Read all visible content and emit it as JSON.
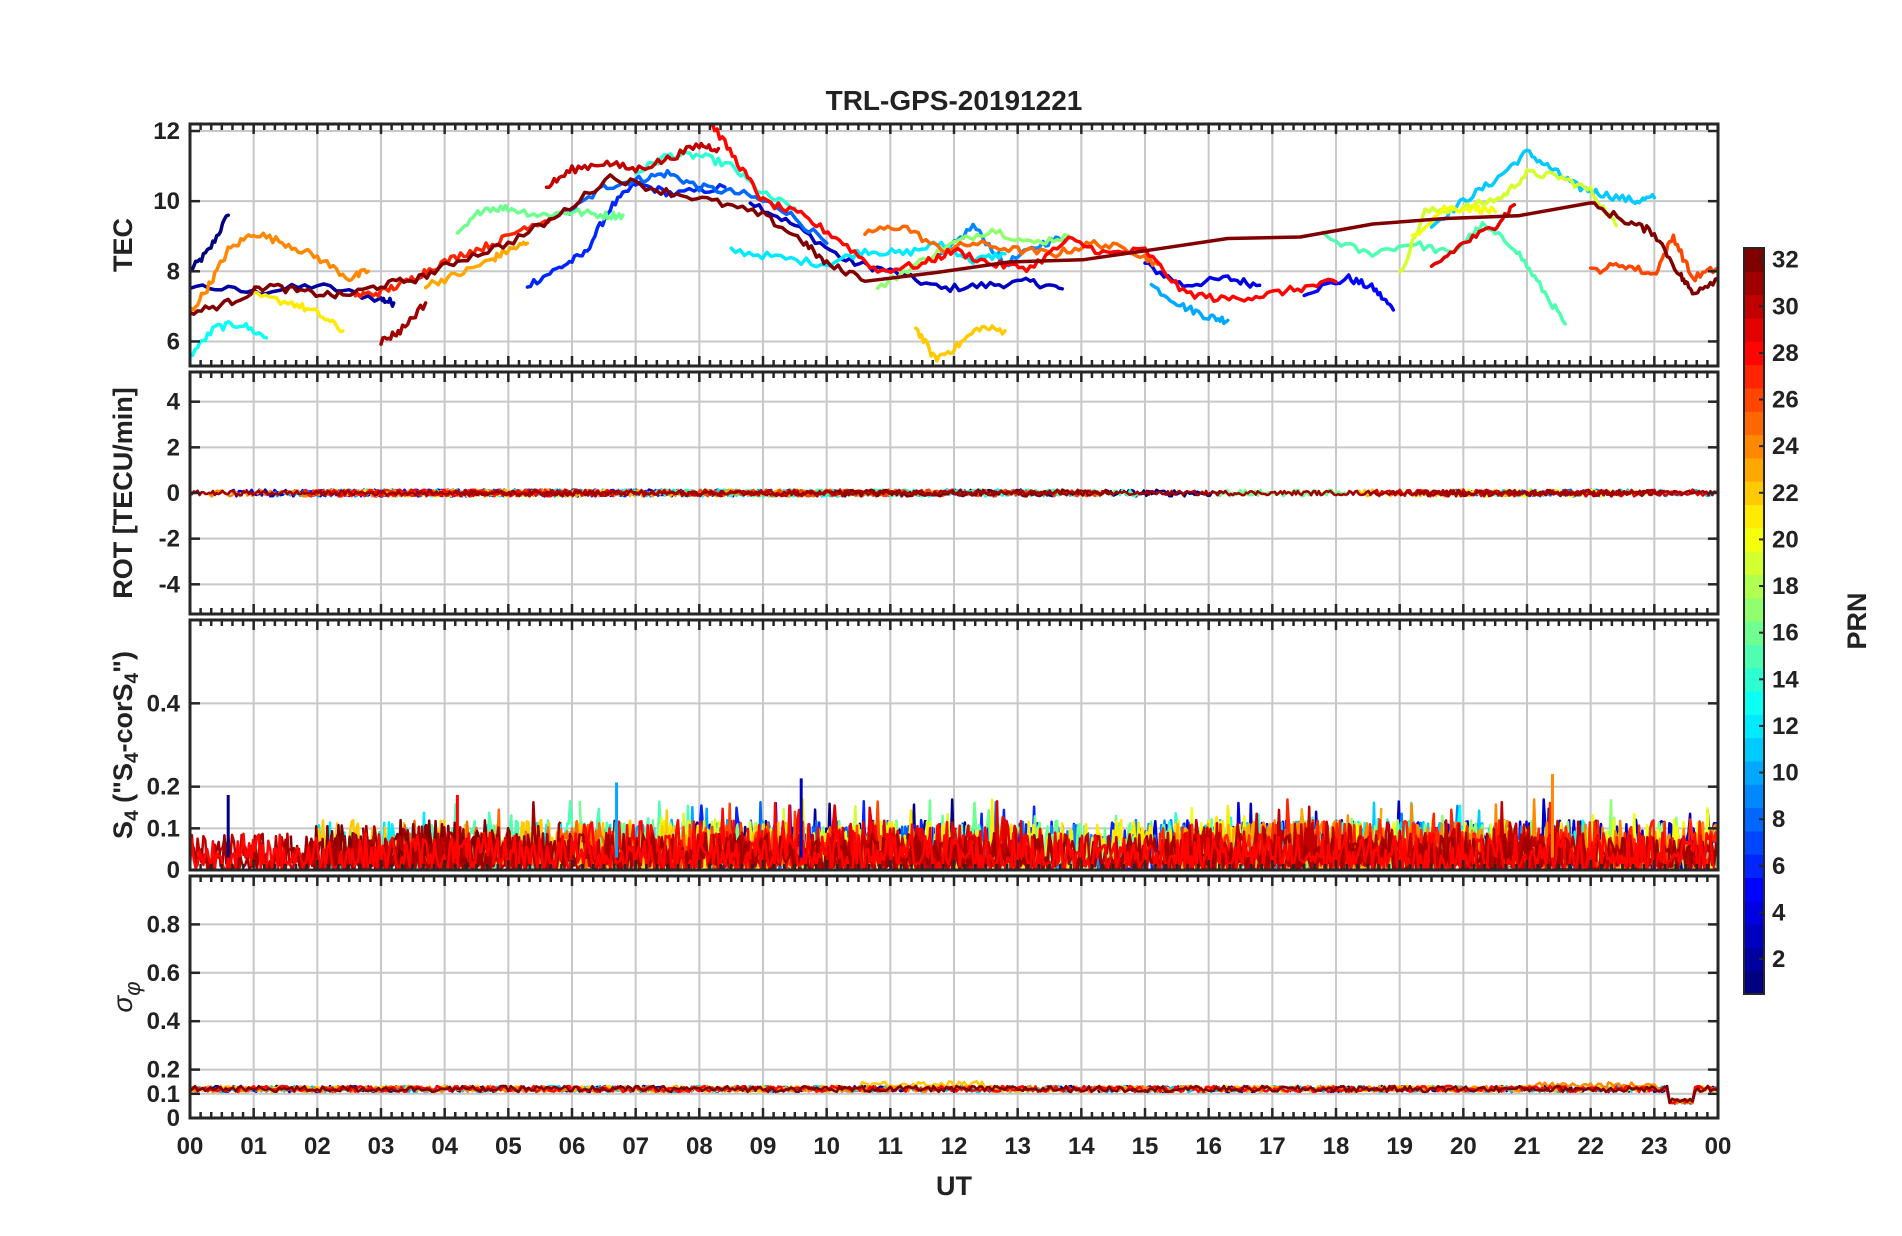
{
  "chart_data": {
    "type": "line",
    "title": "TRL-GPS-20191221",
    "xlabel": "UT",
    "x_tick_labels": [
      "00",
      "01",
      "02",
      "03",
      "04",
      "05",
      "06",
      "07",
      "08",
      "09",
      "10",
      "11",
      "12",
      "13",
      "14",
      "15",
      "16",
      "17",
      "18",
      "19",
      "20",
      "21",
      "22",
      "23",
      "00"
    ],
    "xlim": [
      0,
      24
    ],
    "colorbar": {
      "label": "PRN",
      "range": [
        1,
        32
      ],
      "tick_labels": [
        "2",
        "4",
        "6",
        "8",
        "10",
        "12",
        "14",
        "16",
        "18",
        "20",
        "22",
        "24",
        "26",
        "28",
        "30",
        "32"
      ],
      "colormap": "jet"
    },
    "panels": [
      {
        "id": "tec",
        "ylabel": "TEC",
        "ylim": [
          5.3,
          12.2
        ],
        "yticks": [
          6,
          8,
          10,
          12
        ],
        "ytick_labels": [
          "6",
          "8",
          "10",
          "12"
        ],
        "series": [
          {
            "prn": 1,
            "x": [
              0.0,
              0.3,
              0.6
            ],
            "y": [
              8.0,
              8.6,
              9.6
            ]
          },
          {
            "prn": 2,
            "x": [
              0.0,
              1.0,
              2.0,
              3.0,
              3.2
            ],
            "y": [
              7.6,
              7.4,
              7.6,
              7.2,
              7.1
            ]
          },
          {
            "prn": 3,
            "x": [
              8.8,
              9.5,
              10.3,
              11.0,
              11.8,
              12.5,
              13.2,
              13.7
            ],
            "y": [
              10.0,
              9.3,
              8.3,
              8.0,
              7.5,
              7.6,
              7.7,
              7.5
            ]
          },
          {
            "prn": 4,
            "x": [
              15.0,
              15.6,
              16.3,
              16.8
            ],
            "y": [
              8.2,
              7.6,
              7.8,
              7.6
            ]
          },
          {
            "prn": 5,
            "x": [
              17.5,
              18.2,
              18.6,
              18.9
            ],
            "y": [
              7.4,
              7.8,
              7.5,
              6.9
            ]
          },
          {
            "prn": 6,
            "x": [
              5.3,
              5.8,
              6.2,
              6.6,
              7.0,
              7.6,
              8.4
            ],
            "y": [
              7.6,
              8.1,
              8.5,
              9.8,
              10.5,
              10.2,
              10.4
            ]
          },
          {
            "prn": 8,
            "x": [
              5.9,
              6.5,
              7.0,
              7.5,
              8.0,
              8.7,
              9.3,
              10.0
            ],
            "y": [
              9.6,
              10.4,
              10.6,
              10.8,
              10.4,
              10.2,
              9.8,
              8.8
            ]
          },
          {
            "prn": 9,
            "x": [
              11.8,
              12.3,
              12.8,
              13.4,
              13.8
            ],
            "y": [
              8.4,
              9.3,
              8.2,
              8.8,
              9.0
            ]
          },
          {
            "prn": 10,
            "x": [
              15.1,
              15.6,
              16.0,
              16.3
            ],
            "y": [
              7.6,
              7.0,
              6.7,
              6.6
            ]
          },
          {
            "prn": 11,
            "x": [
              19.5,
              20.0,
              20.5,
              21.0,
              21.4,
              21.8,
              22.2,
              22.7,
              23.0
            ],
            "y": [
              9.3,
              10.0,
              10.6,
              11.4,
              10.9,
              10.4,
              10.2,
              10.0,
              10.1
            ]
          },
          {
            "prn": 12,
            "x": [
              8.5,
              9.2,
              10.0,
              10.6,
              11.2,
              11.8,
              12.3,
              12.8
            ],
            "y": [
              8.6,
              8.4,
              8.2,
              8.6,
              8.5,
              8.8,
              8.3,
              8.5
            ]
          },
          {
            "prn": 13,
            "x": [
              0.0,
              0.4,
              0.8,
              1.2
            ],
            "y": [
              5.6,
              6.4,
              6.5,
              6.1
            ]
          },
          {
            "prn": 14,
            "x": [
              7.0,
              7.5,
              8.0,
              8.5,
              9.0,
              9.5
            ],
            "y": [
              10.8,
              11.3,
              11.3,
              11.0,
              10.2,
              9.8
            ]
          },
          {
            "prn": 15,
            "x": [
              17.8,
              18.5,
              19.2,
              19.8,
              20.3,
              20.8,
              21.2,
              21.6
            ],
            "y": [
              9.0,
              8.5,
              8.8,
              8.5,
              9.3,
              8.7,
              7.6,
              6.5
            ]
          },
          {
            "prn": 16,
            "x": [
              4.2,
              4.6,
              5.0,
              5.5,
              6.0,
              6.5,
              6.8
            ],
            "y": [
              9.0,
              9.8,
              9.8,
              9.6,
              9.7,
              9.6,
              9.6
            ]
          },
          {
            "prn": 17,
            "x": [
              10.8,
              11.4,
              12.0,
              12.6,
              13.2,
              13.8
            ],
            "y": [
              7.5,
              8.2,
              8.8,
              9.2,
              8.8,
              9.0
            ]
          },
          {
            "prn": 19,
            "x": [
              19.0,
              19.4,
              20.0,
              20.6,
              21.0,
              21.5,
              22.0,
              22.4
            ],
            "y": [
              7.9,
              9.7,
              9.8,
              10.1,
              10.8,
              10.7,
              10.3,
              9.3
            ]
          },
          {
            "prn": 20,
            "x": [
              19.2,
              19.7,
              20.2,
              20.5
            ],
            "y": [
              9.0,
              9.8,
              9.8,
              9.7
            ]
          },
          {
            "prn": 21,
            "x": [
              1.0,
              1.6,
              2.0,
              2.4
            ],
            "y": [
              7.3,
              7.1,
              6.8,
              6.3
            ]
          },
          {
            "prn": 22,
            "x": [
              11.4,
              11.7,
              12.0,
              12.4,
              12.8
            ],
            "y": [
              6.4,
              5.5,
              5.8,
              6.4,
              6.3
            ]
          },
          {
            "prn": 23,
            "x": [
              3.7,
              4.2,
              4.7,
              5.0,
              5.3
            ],
            "y": [
              7.6,
              7.9,
              8.3,
              8.6,
              8.8
            ]
          },
          {
            "prn": 24,
            "x": [
              0.0,
              0.3,
              0.6,
              1.0,
              1.5,
              2.0,
              2.5,
              2.8
            ],
            "y": [
              6.8,
              7.6,
              8.6,
              9.1,
              8.8,
              8.4,
              7.8,
              8.0
            ]
          },
          {
            "prn": 25,
            "x": [
              10.6,
              11.2,
              11.8,
              12.3,
              13.0,
              13.6,
              14.2,
              14.8,
              15.2
            ],
            "y": [
              9.1,
              9.3,
              8.6,
              8.8,
              8.6,
              8.5,
              8.8,
              8.6,
              8.2
            ]
          },
          {
            "prn": 26,
            "x": [
              22.0,
              22.5,
              23.0,
              23.3,
              23.6,
              24.0
            ],
            "y": [
              8.0,
              8.2,
              7.9,
              9.0,
              7.8,
              8.1
            ]
          },
          {
            "prn": 27,
            "x": [
              2.6,
              3.0,
              3.4,
              3.8,
              4.3,
              4.8,
              5.3,
              5.7
            ],
            "y": [
              7.3,
              7.4,
              7.7,
              8.1,
              8.5,
              8.8,
              9.3,
              9.5
            ]
          },
          {
            "prn": 28,
            "x": [
              8.2,
              8.6,
              9.0,
              9.6,
              10.2,
              10.8,
              11.5,
              12.0,
              12.6,
              13.2,
              13.8,
              14.4,
              15.0,
              15.6,
              16.2,
              16.8,
              17.4,
              18.0
            ],
            "y": [
              12.2,
              11.1,
              10.0,
              9.6,
              8.9,
              8.0,
              8.2,
              8.6,
              8.2,
              8.1,
              8.9,
              8.5,
              8.6,
              7.4,
              7.2,
              7.3,
              7.5,
              7.7
            ]
          },
          {
            "prn": 29,
            "x": [
              19.5,
              20.0,
              20.5,
              20.8
            ],
            "y": [
              8.1,
              8.8,
              9.3,
              9.9
            ]
          },
          {
            "prn": 30,
            "x": [
              5.6,
              6.0,
              6.5,
              7.0,
              7.5,
              8.0,
              8.3
            ],
            "y": [
              10.4,
              10.9,
              11.1,
              10.9,
              11.2,
              11.6,
              11.5
            ]
          },
          {
            "prn": 31,
            "x": [
              3.0,
              3.3,
              3.7
            ],
            "y": [
              6.0,
              6.3,
              7.1
            ]
          },
          {
            "prn": 32,
            "x": [
              0.0,
              0.6,
              1.2,
              1.8,
              2.4,
              3.0,
              3.6,
              4.2,
              5.0,
              5.8,
              6.6,
              7.4,
              8.2,
              9.0,
              9.6,
              10.0,
              10.6,
              22.0,
              22.6,
              23.0,
              23.4,
              23.6,
              24.0
            ],
            "y": [
              6.8,
              7.1,
              7.6,
              7.4,
              7.3,
              7.6,
              7.8,
              8.3,
              8.8,
              9.6,
              10.7,
              10.3,
              10.0,
              9.6,
              8.9,
              8.2,
              7.8,
              9.9,
              9.4,
              9.1,
              7.9,
              7.4,
              7.8
            ]
          }
        ]
      },
      {
        "id": "rot",
        "ylabel": "ROT [TECU/min]",
        "ylim": [
          -5.3,
          5.3
        ],
        "yticks": [
          -4,
          -2,
          0,
          2,
          4
        ],
        "ytick_labels": [
          "-4",
          "-2",
          "0",
          "2",
          "4"
        ],
        "baseline": 0,
        "noise_amplitude": 0.15
      },
      {
        "id": "s4",
        "ylabel": "S4 (\"S4-corS4\")",
        "ylim": [
          0,
          0.6
        ],
        "yticks": [
          0,
          0.1,
          0.2,
          0.4
        ],
        "ytick_labels": [
          "0",
          "0.1",
          "0.2",
          "0.4"
        ],
        "typical_range": [
          0.0,
          0.12
        ],
        "peaks": [
          {
            "x": 9.6,
            "y": 0.22,
            "prn": 3
          },
          {
            "x": 6.7,
            "y": 0.21,
            "prn": 10
          },
          {
            "x": 21.4,
            "y": 0.23,
            "prn": 24
          },
          {
            "x": 0.6,
            "y": 0.18,
            "prn": 1
          },
          {
            "x": 4.2,
            "y": 0.18,
            "prn": 28
          }
        ]
      },
      {
        "id": "sigma",
        "ylabel": "σ_φ",
        "ylim": [
          0,
          1.0
        ],
        "yticks": [
          0,
          0.1,
          0.2,
          0.4,
          0.6,
          0.8
        ],
        "ytick_labels": [
          "0",
          "0.1",
          "0.2",
          "0.4",
          "0.6",
          "0.8"
        ],
        "baseline": 0.12,
        "dip": {
          "x_start": 23.2,
          "x_end": 23.6,
          "y": 0.07
        }
      }
    ]
  }
}
